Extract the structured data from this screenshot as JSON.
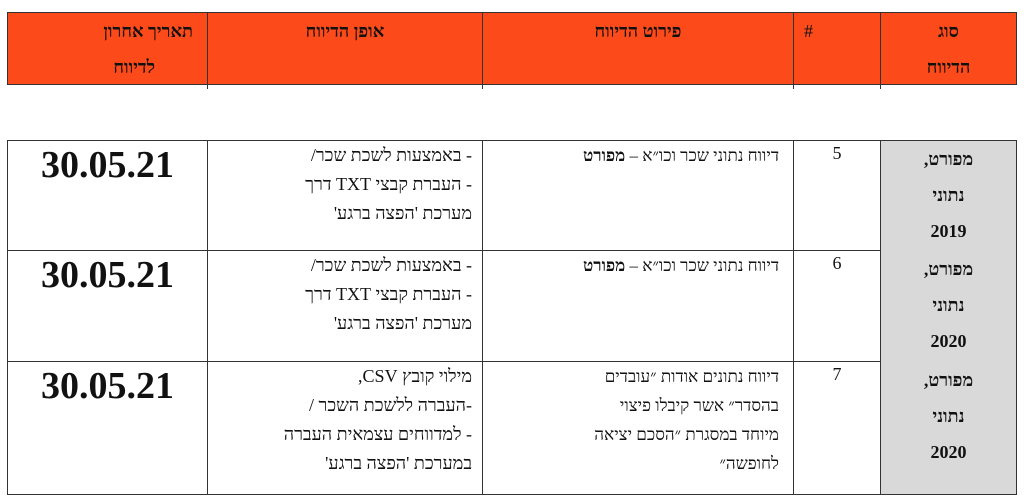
{
  "header": {
    "type": [
      "סוג",
      "הדיווח"
    ],
    "number": "#",
    "detail": "פירוט הדיווח",
    "method": "אופן הדיווח",
    "date": [
      "תאריך אחרון",
      "לדיווח"
    ]
  },
  "colors": {
    "header_bg": "#fc4a1a",
    "type_cell_bg": "#d9d9d9"
  },
  "rows": [
    {
      "type": [
        "מפורט,",
        "נתוני",
        "2019"
      ],
      "number": "5",
      "detail": {
        "text": "דיווח נתוני שכר וכו״א – ",
        "bold": "מפורט"
      },
      "method": [
        "- באמצעות לשכת שכר/",
        "- העברת קבצי TXT דרך",
        "מערכת 'הפצה ברגע'"
      ],
      "date": "30.05.21"
    },
    {
      "type": [
        "מפורט,",
        "נתוני",
        "2020"
      ],
      "number": "6",
      "detail": {
        "text": "דיווח נתוני שכר וכו״א – ",
        "bold": "מפורט"
      },
      "method": [
        "- באמצעות לשכת שכר/",
        "- העברת קבצי TXT דרך",
        "מערכת 'הפצה ברגע'"
      ],
      "date": "30.05.21"
    },
    {
      "type": [
        "מפורט,",
        "נתוני",
        "2020"
      ],
      "number": "7",
      "detail": {
        "lines": [
          "דיווח נתונים אודות ״עובדים",
          "בהסדר״ אשר קיבלו פיצוי",
          "מיוחד במסגרת ״הסכם יציאה",
          "לחופשה״"
        ]
      },
      "method": [
        "מילוי קובץ CSV,",
        "-העברה ללשכת השכר /",
        "- למדווחים עצמאית העברה",
        "במערכת 'הפצה ברגע'"
      ],
      "date": "30.05.21"
    }
  ]
}
